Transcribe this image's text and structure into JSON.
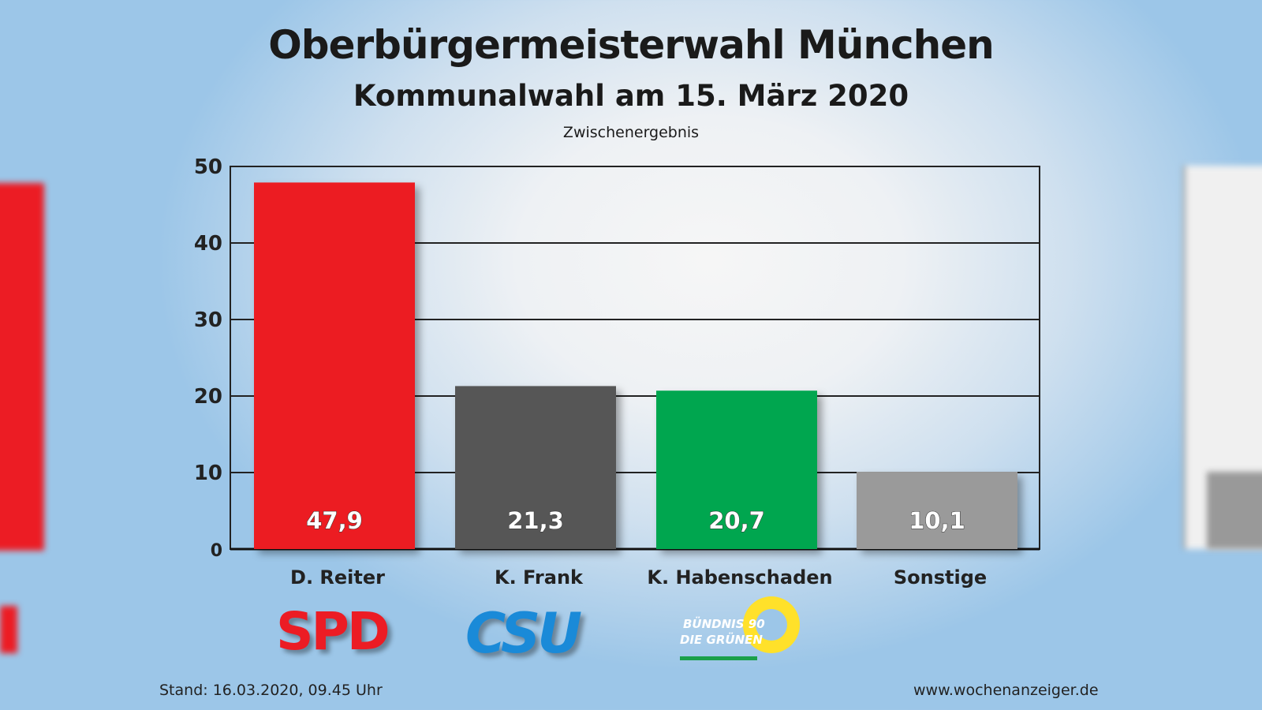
{
  "title": "Oberbürgermeisterwahl München",
  "subtitle": "Kommunalwahl am 15. März 2020",
  "note": "Zwischenergebnis",
  "footer": {
    "left": "Stand: 16.03.2020, 09.45 Uhr",
    "right": "www.wochenanzeiger.de"
  },
  "logos": {
    "spd": "SPD",
    "csu": "CSU",
    "gruene_line1": "BÜNDNIS 90",
    "gruene_line2": "DIE GRÜNEN"
  },
  "chart_data": {
    "type": "bar",
    "categories": [
      "D. Reiter",
      "K. Frank",
      "K. Habenschaden",
      "Sonstige"
    ],
    "values": [
      47.9,
      21.3,
      20.7,
      10.1
    ],
    "value_labels": [
      "47,9",
      "21,3",
      "20,7",
      "10,1"
    ],
    "colors": [
      "#ec1c24",
      "#575757",
      "#00a650",
      "#9a9a9a"
    ],
    "ylim": [
      0,
      50
    ],
    "yticks": [
      0,
      10,
      20,
      30,
      40,
      50
    ],
    "grid": true,
    "xlabel": "",
    "ylabel": ""
  }
}
